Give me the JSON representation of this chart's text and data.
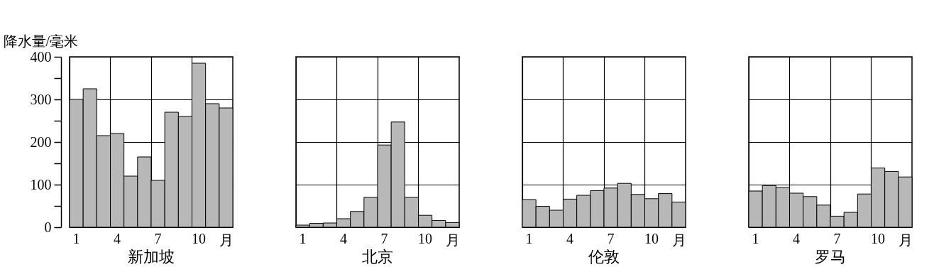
{
  "chart_data": [
    {
      "type": "bar",
      "title": "新加坡",
      "xlabel": "月",
      "ylabel": "降水量/毫米",
      "categories": [
        "1",
        null,
        null,
        "4",
        null,
        null,
        "7",
        null,
        null,
        "10",
        null,
        null
      ],
      "values": [
        300,
        325,
        215,
        220,
        120,
        165,
        110,
        270,
        260,
        385,
        290,
        280
      ],
      "color": "#b8b8b8",
      "ylim": [
        0,
        400
      ],
      "yticks": [
        0,
        {
          "value": 50,
          "label": null
        },
        100,
        {
          "value": 150,
          "label": null
        },
        200,
        {
          "value": 250,
          "label": null
        },
        300,
        {
          "value": 350,
          "label": null
        },
        400
      ],
      "grid": true
    },
    {
      "type": "bar",
      "title": "北京",
      "xlabel": "月",
      "categories": [
        "1",
        null,
        null,
        "4",
        null,
        null,
        "7",
        null,
        null,
        "10",
        null,
        null
      ],
      "values": [
        5,
        9,
        10,
        20,
        37,
        70,
        193,
        247,
        70,
        28,
        16,
        11
      ],
      "color": "#b8b8b8",
      "ylim": [
        0,
        400
      ],
      "yticks": [
        0,
        100,
        200,
        300,
        400
      ],
      "grid": true,
      "tick_labels": "x"
    },
    {
      "type": "bar",
      "title": "伦敦",
      "xlabel": "月",
      "categories": [
        "1",
        null,
        null,
        "4",
        null,
        null,
        "7",
        null,
        null,
        "10",
        null,
        null
      ],
      "values": [
        65,
        49,
        40,
        66,
        75,
        86,
        92,
        103,
        77,
        67,
        79,
        59
      ],
      "color": "#b8b8b8",
      "ylim": [
        0,
        400
      ],
      "yticks": [
        0,
        100,
        200,
        300,
        400
      ],
      "grid": true,
      "tick_labels": "x"
    },
    {
      "type": "bar",
      "title": "罗马",
      "xlabel": "月",
      "categories": [
        "1",
        null,
        null,
        "4",
        null,
        null,
        "7",
        null,
        null,
        "10",
        null,
        null
      ],
      "values": [
        85,
        98,
        93,
        80,
        72,
        52,
        26,
        35,
        78,
        139,
        131,
        118
      ],
      "color": "#b8b8b8",
      "ylim": [
        0,
        400
      ],
      "yticks": [
        0,
        100,
        200,
        300,
        400
      ],
      "grid": true,
      "tick_labels": "x"
    }
  ]
}
